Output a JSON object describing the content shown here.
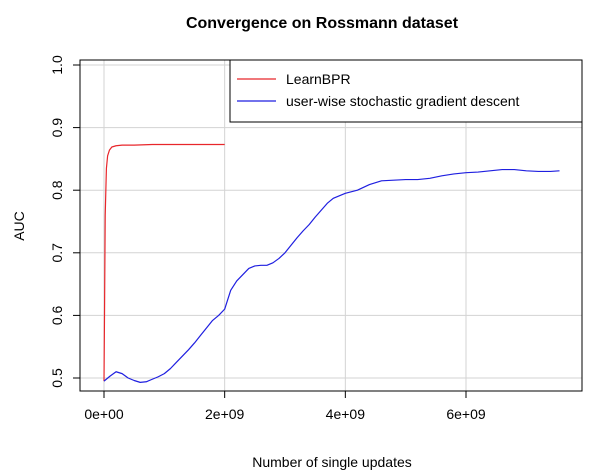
{
  "chart_data": {
    "type": "line",
    "title": "Convergence on Rossmann dataset",
    "xlabel": "Number of single updates",
    "ylabel": "AUC",
    "xlim": [
      -200000000,
      7800000000
    ],
    "ylim": [
      0.49,
      1.0
    ],
    "x_ticks": [
      0,
      2000000000,
      4000000000,
      6000000000
    ],
    "x_tick_labels": [
      "0e+00",
      "2e+09",
      "4e+09",
      "6e+09"
    ],
    "y_ticks": [
      0.5,
      0.6,
      0.7,
      0.8,
      0.9,
      1.0
    ],
    "y_tick_labels": [
      "0.5",
      "0.6",
      "0.7",
      "0.8",
      "0.9",
      "1.0"
    ],
    "grid": true,
    "legend_position": "top-right",
    "series": [
      {
        "name": "LearnBPR",
        "color": "#e8262b",
        "x": [
          0,
          10000000,
          20000000,
          40000000,
          60000000,
          90000000,
          130000000,
          200000000,
          300000000,
          500000000,
          800000000,
          1200000000,
          1600000000,
          2000000000
        ],
        "y": [
          0.495,
          0.62,
          0.76,
          0.835,
          0.855,
          0.864,
          0.869,
          0.871,
          0.872,
          0.872,
          0.873,
          0.873,
          0.873,
          0.873
        ]
      },
      {
        "name": "user-wise stochastic gradient descent",
        "color": "#1f1fe0",
        "x": [
          0,
          100000000,
          200000000,
          300000000,
          400000000,
          500000000,
          600000000,
          700000000,
          800000000,
          900000000,
          1000000000,
          1100000000,
          1200000000,
          1300000000,
          1400000000,
          1500000000,
          1600000000,
          1700000000,
          1800000000,
          1900000000,
          2000000000,
          2100000000,
          2200000000,
          2300000000,
          2400000000,
          2500000000,
          2600000000,
          2700000000,
          2800000000,
          2900000000,
          3000000000,
          3100000000,
          3200000000,
          3300000000,
          3400000000,
          3500000000,
          3600000000,
          3700000000,
          3800000000,
          3900000000,
          4000000000,
          4200000000,
          4400000000,
          4600000000,
          4800000000,
          5000000000,
          5200000000,
          5400000000,
          5600000000,
          5800000000,
          6000000000,
          6200000000,
          6400000000,
          6600000000,
          6800000000,
          7000000000,
          7200000000,
          7400000000,
          7550000000
        ],
        "y": [
          0.495,
          0.503,
          0.51,
          0.507,
          0.5,
          0.496,
          0.493,
          0.494,
          0.498,
          0.502,
          0.507,
          0.515,
          0.525,
          0.535,
          0.545,
          0.556,
          0.568,
          0.58,
          0.592,
          0.6,
          0.61,
          0.64,
          0.655,
          0.665,
          0.675,
          0.679,
          0.68,
          0.68,
          0.684,
          0.691,
          0.7,
          0.712,
          0.724,
          0.735,
          0.745,
          0.757,
          0.768,
          0.779,
          0.787,
          0.791,
          0.795,
          0.8,
          0.809,
          0.815,
          0.816,
          0.817,
          0.817,
          0.819,
          0.823,
          0.826,
          0.828,
          0.829,
          0.831,
          0.833,
          0.833,
          0.831,
          0.83,
          0.83,
          0.831
        ]
      }
    ]
  }
}
